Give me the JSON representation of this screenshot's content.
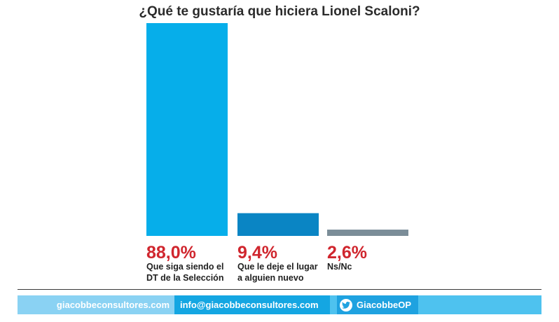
{
  "chart_data": {
    "type": "bar",
    "title": "¿Qué te gustaría que hiciera Lionel Scaloni?",
    "categories": [
      [
        "Que siga siendo el",
        "DT de la Selección"
      ],
      [
        "Que le deje el lugar",
        "a alguien nuevo"
      ],
      [
        "Ns/Nc"
      ]
    ],
    "values": [
      88.0,
      9.4,
      2.6
    ],
    "value_labels": [
      "88,0%",
      "9,4%",
      "2,6%"
    ],
    "ylim": [
      0,
      88
    ],
    "bar_colors": [
      "#06aeea",
      "#0a85c4",
      "#7b8d98"
    ],
    "value_label_color": "#d0262e",
    "grid": false,
    "legend": "none"
  },
  "footer": {
    "website": "giacobbeconsultores.com",
    "email": "info@giacobbeconsultores.com",
    "twitter": "GiacobbeOP"
  },
  "icons": {
    "twitter": "twitter-bird-icon"
  }
}
